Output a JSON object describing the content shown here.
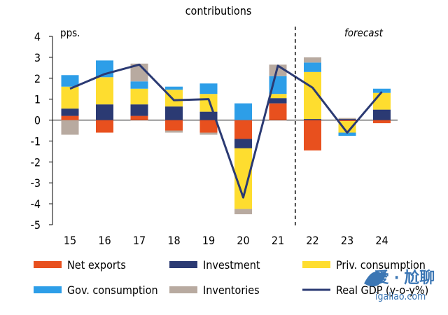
{
  "chart_data": {
    "type": "bar",
    "stacked": true,
    "title_lines": [
      "contributions"
    ],
    "ylabel": "pps.",
    "annotation": "forecast",
    "ylim": [
      -5,
      4
    ],
    "yticks": [
      -5,
      -4,
      -3,
      -2,
      -1,
      0,
      1,
      2,
      3,
      4
    ],
    "categories": [
      "15",
      "16",
      "17",
      "18",
      "19",
      "20",
      "21",
      "22",
      "23",
      "24"
    ],
    "forecast_from": "22",
    "series": [
      {
        "name": "Net exports",
        "key": "net_exports",
        "color": "#e8501e",
        "values": [
          0.2,
          -0.6,
          0.2,
          -0.5,
          -0.6,
          -0.9,
          0.8,
          -1.45,
          -0.05,
          -0.15
        ]
      },
      {
        "name": "Investment",
        "key": "investment",
        "color": "#2b3a73",
        "values": [
          0.35,
          0.75,
          0.55,
          0.65,
          0.4,
          -0.45,
          0.25,
          0.05,
          0.05,
          0.5
        ]
      },
      {
        "name": "Priv. consumption",
        "key": "priv_consumption",
        "color": "#fedd2f",
        "values": [
          1.05,
          1.3,
          0.75,
          0.8,
          0.85,
          -2.9,
          0.2,
          2.25,
          -0.55,
          0.8
        ]
      },
      {
        "name": "Gov. consumption",
        "key": "gov_consumption",
        "color": "#2d9ee8",
        "values": [
          0.55,
          0.8,
          0.35,
          0.15,
          0.5,
          0.8,
          0.85,
          0.45,
          -0.15,
          0.2
        ]
      },
      {
        "name": "Inventories",
        "key": "inventories",
        "color": "#b8aaa0",
        "values": [
          -0.7,
          0.0,
          0.85,
          -0.1,
          -0.1,
          -0.25,
          0.55,
          0.25,
          0.05,
          0.0
        ]
      }
    ],
    "line": {
      "name": "Real GDP (y-o-y%)",
      "color": "#2b3a73",
      "values": [
        1.5,
        2.2,
        2.65,
        0.95,
        1.0,
        -3.7,
        2.6,
        1.55,
        -0.6,
        1.35
      ]
    }
  },
  "watermark": {
    "brand": "爱 · 尬聊",
    "site": "igaliao.com"
  },
  "colors": {
    "net_exports": "#e8501e",
    "investment": "#2b3a73",
    "priv_consumption": "#fedd2f",
    "gov_consumption": "#2d9ee8",
    "inventories": "#b8aaa0",
    "gdp_line": "#2b3a73"
  }
}
